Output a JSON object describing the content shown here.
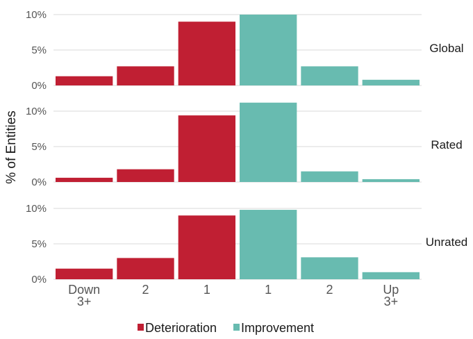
{
  "chart_data": {
    "type": "bar",
    "ylabel": "% of Entities",
    "categories": [
      "Down\n3+",
      "2",
      "1",
      "1",
      "2",
      "Up\n3+"
    ],
    "bar_groups": [
      "Deterioration",
      "Deterioration",
      "Deterioration",
      "Improvement",
      "Improvement",
      "Improvement"
    ],
    "y_ticks": [
      "0%",
      "5%",
      "10%"
    ],
    "ylim": [
      0,
      10
    ],
    "grid": true,
    "legend": {
      "position": "bottom",
      "entries": [
        "Deterioration",
        "Improvement"
      ]
    },
    "colors": {
      "Deterioration": "#c01f33",
      "Improvement": "#68bbb0"
    },
    "facets": [
      {
        "label": "Global",
        "values": [
          1.3,
          2.7,
          9.0,
          10.0,
          2.7,
          0.8
        ]
      },
      {
        "label": "Rated",
        "values": [
          0.6,
          1.8,
          9.4,
          11.2,
          1.5,
          0.4
        ]
      },
      {
        "label": "Unrated",
        "values": [
          1.5,
          3.0,
          9.0,
          9.8,
          3.1,
          1.0
        ]
      }
    ]
  }
}
